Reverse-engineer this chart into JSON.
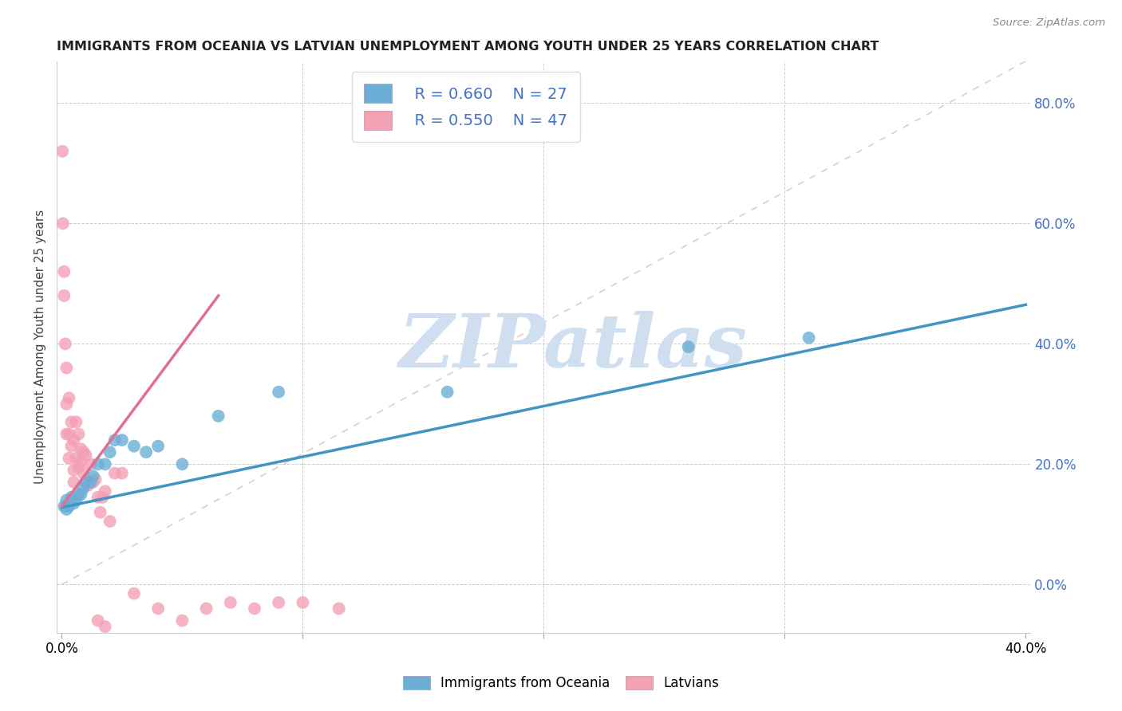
{
  "title": "IMMIGRANTS FROM OCEANIA VS LATVIAN UNEMPLOYMENT AMONG YOUTH UNDER 25 YEARS CORRELATION CHART",
  "source": "Source: ZipAtlas.com",
  "ylabel": "Unemployment Among Youth under 25 years",
  "xlim": [
    -0.002,
    0.402
  ],
  "ylim": [
    -0.08,
    0.87
  ],
  "yticks": [
    0.0,
    0.2,
    0.4,
    0.6,
    0.8
  ],
  "ytick_labels": [
    "0.0%",
    "20.0%",
    "40.0%",
    "60.0%",
    "80.0%"
  ],
  "xtick_shown": [
    "0.0%",
    "40.0%"
  ],
  "xtick_pos_shown": [
    0.0,
    0.4
  ],
  "background_color": "#ffffff",
  "grid_color": "#cccccc",
  "blue_color": "#6baed6",
  "pink_color": "#f4a0b5",
  "blue_line_color": "#4393c3",
  "pink_line_color": "#e07090",
  "blue_R": "R = 0.660",
  "blue_N": "N = 27",
  "pink_R": "R = 0.550",
  "pink_N": "N = 47",
  "watermark": "ZIPatlas",
  "watermark_color": "#d0dff0",
  "blue_scatter_x": [
    0.001,
    0.002,
    0.002,
    0.003,
    0.004,
    0.005,
    0.006,
    0.007,
    0.008,
    0.009,
    0.01,
    0.012,
    0.013,
    0.015,
    0.018,
    0.02,
    0.022,
    0.025,
    0.03,
    0.035,
    0.04,
    0.05,
    0.065,
    0.09,
    0.16,
    0.26,
    0.31
  ],
  "blue_scatter_y": [
    0.13,
    0.125,
    0.14,
    0.13,
    0.145,
    0.135,
    0.14,
    0.15,
    0.15,
    0.16,
    0.17,
    0.17,
    0.18,
    0.2,
    0.2,
    0.22,
    0.24,
    0.24,
    0.23,
    0.22,
    0.23,
    0.2,
    0.28,
    0.32,
    0.32,
    0.395,
    0.41
  ],
  "pink_scatter_x": [
    0.0003,
    0.0005,
    0.001,
    0.001,
    0.0015,
    0.002,
    0.002,
    0.002,
    0.003,
    0.003,
    0.003,
    0.004,
    0.004,
    0.005,
    0.005,
    0.005,
    0.006,
    0.006,
    0.007,
    0.007,
    0.008,
    0.008,
    0.009,
    0.009,
    0.01,
    0.011,
    0.012,
    0.013,
    0.014,
    0.015,
    0.016,
    0.017,
    0.018,
    0.02,
    0.022,
    0.025,
    0.03,
    0.04,
    0.05,
    0.06,
    0.07,
    0.08,
    0.09,
    0.1,
    0.115,
    0.015,
    0.018
  ],
  "pink_scatter_y": [
    0.72,
    0.6,
    0.48,
    0.52,
    0.4,
    0.36,
    0.3,
    0.25,
    0.31,
    0.25,
    0.21,
    0.27,
    0.23,
    0.24,
    0.19,
    0.17,
    0.27,
    0.21,
    0.25,
    0.195,
    0.225,
    0.205,
    0.22,
    0.185,
    0.215,
    0.165,
    0.2,
    0.17,
    0.175,
    0.145,
    0.12,
    0.145,
    0.155,
    0.105,
    0.185,
    0.185,
    -0.015,
    -0.04,
    -0.06,
    -0.04,
    -0.03,
    -0.04,
    -0.03,
    -0.03,
    -0.04,
    -0.06,
    -0.07
  ],
  "blue_line_x": [
    0.0,
    0.4
  ],
  "blue_line_y": [
    0.128,
    0.465
  ],
  "pink_line_x": [
    0.0,
    0.065
  ],
  "pink_line_y": [
    0.13,
    0.48
  ],
  "diag_line_x": [
    0.0,
    0.4
  ],
  "diag_line_y": [
    0.0,
    0.87
  ]
}
